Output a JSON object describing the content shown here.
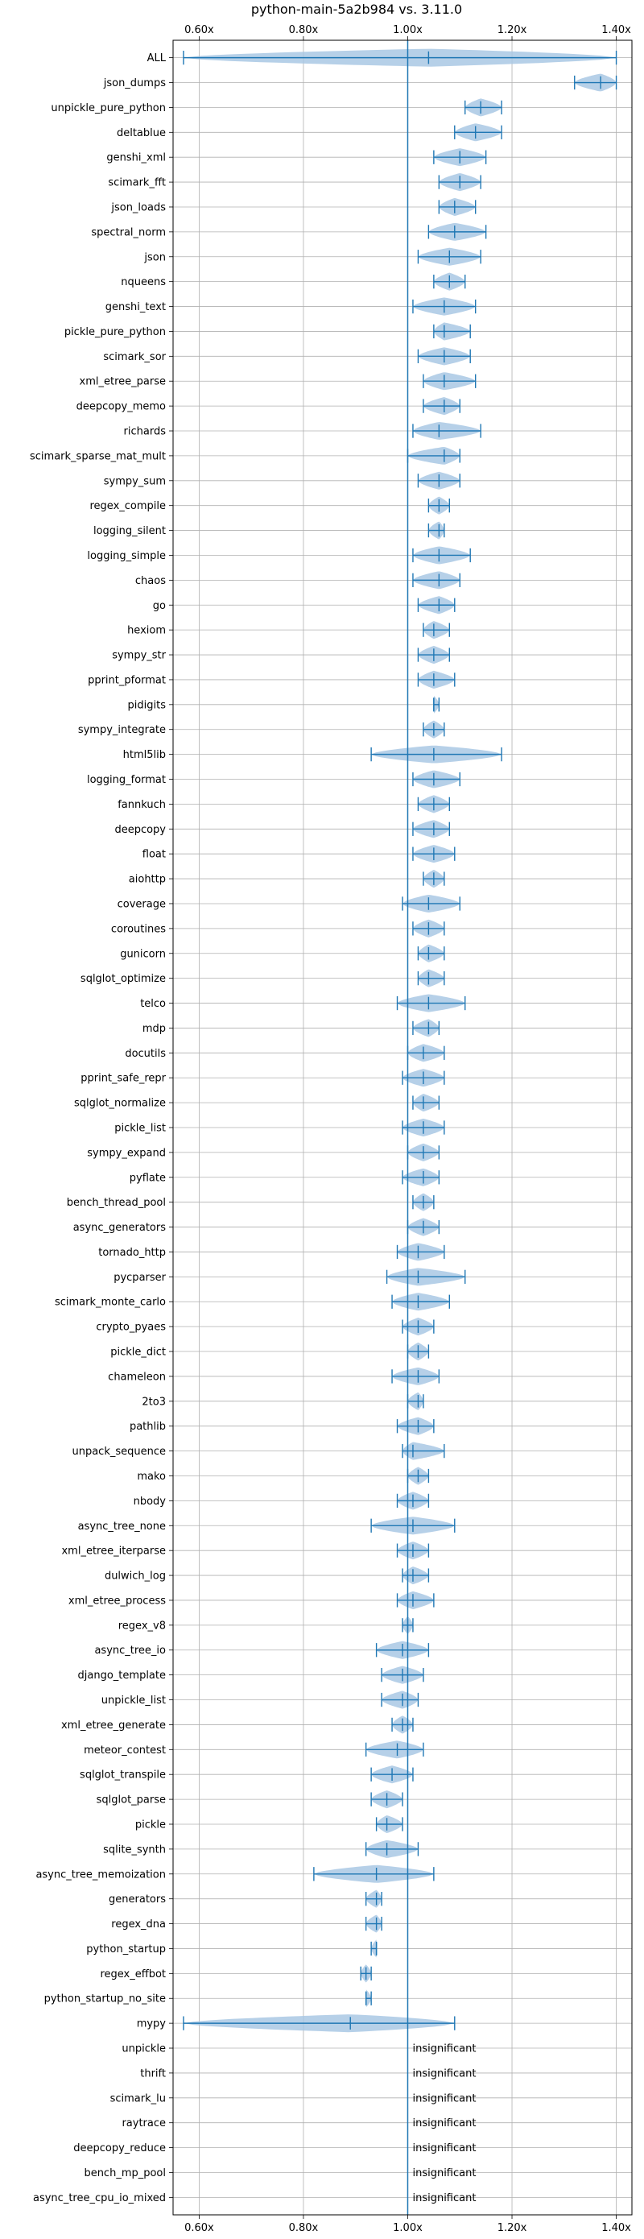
{
  "chart_data": {
    "type": "violin",
    "title": "python-main-5a2b984 vs. 3.11.0",
    "xlim": [
      0.55,
      1.43
    ],
    "xticks": [
      0.6,
      0.8,
      1.0,
      1.2,
      1.4
    ],
    "xtick_labels": [
      "0.60x",
      "0.80x",
      "1.00x",
      "1.20x",
      "1.40x"
    ],
    "reference_line": 1.0,
    "grid": true,
    "color": "#1f77b4",
    "fill_color": "#a9c8e4",
    "insignificant_label": "insignificant",
    "benchmarks": [
      {
        "name": "ALL",
        "min": 0.57,
        "max": 1.4,
        "median": 1.04
      },
      {
        "name": "json_dumps",
        "min": 1.32,
        "max": 1.4,
        "median": 1.37
      },
      {
        "name": "unpickle_pure_python",
        "min": 1.11,
        "max": 1.18,
        "median": 1.14
      },
      {
        "name": "deltablue",
        "min": 1.09,
        "max": 1.18,
        "median": 1.13
      },
      {
        "name": "genshi_xml",
        "min": 1.05,
        "max": 1.15,
        "median": 1.1
      },
      {
        "name": "scimark_fft",
        "min": 1.06,
        "max": 1.14,
        "median": 1.1
      },
      {
        "name": "json_loads",
        "min": 1.06,
        "max": 1.13,
        "median": 1.09
      },
      {
        "name": "spectral_norm",
        "min": 1.04,
        "max": 1.15,
        "median": 1.09
      },
      {
        "name": "json",
        "min": 1.02,
        "max": 1.14,
        "median": 1.08
      },
      {
        "name": "nqueens",
        "min": 1.05,
        "max": 1.11,
        "median": 1.08
      },
      {
        "name": "genshi_text",
        "min": 1.01,
        "max": 1.13,
        "median": 1.07
      },
      {
        "name": "pickle_pure_python",
        "min": 1.05,
        "max": 1.12,
        "median": 1.07
      },
      {
        "name": "scimark_sor",
        "min": 1.02,
        "max": 1.12,
        "median": 1.07
      },
      {
        "name": "xml_etree_parse",
        "min": 1.03,
        "max": 1.13,
        "median": 1.07
      },
      {
        "name": "deepcopy_memo",
        "min": 1.03,
        "max": 1.1,
        "median": 1.07
      },
      {
        "name": "richards",
        "min": 1.01,
        "max": 1.14,
        "median": 1.06
      },
      {
        "name": "scimark_sparse_mat_mult",
        "min": 1.0,
        "max": 1.1,
        "median": 1.07
      },
      {
        "name": "sympy_sum",
        "min": 1.02,
        "max": 1.1,
        "median": 1.06
      },
      {
        "name": "regex_compile",
        "min": 1.04,
        "max": 1.08,
        "median": 1.06
      },
      {
        "name": "logging_silent",
        "min": 1.04,
        "max": 1.07,
        "median": 1.06
      },
      {
        "name": "logging_simple",
        "min": 1.01,
        "max": 1.12,
        "median": 1.06
      },
      {
        "name": "chaos",
        "min": 1.01,
        "max": 1.1,
        "median": 1.06
      },
      {
        "name": "go",
        "min": 1.02,
        "max": 1.09,
        "median": 1.06
      },
      {
        "name": "hexiom",
        "min": 1.03,
        "max": 1.08,
        "median": 1.05
      },
      {
        "name": "sympy_str",
        "min": 1.02,
        "max": 1.08,
        "median": 1.05
      },
      {
        "name": "pprint_pformat",
        "min": 1.02,
        "max": 1.09,
        "median": 1.05
      },
      {
        "name": "pidigits",
        "min": 1.05,
        "max": 1.06,
        "median": 1.05
      },
      {
        "name": "sympy_integrate",
        "min": 1.03,
        "max": 1.07,
        "median": 1.05
      },
      {
        "name": "html5lib",
        "min": 0.93,
        "max": 1.18,
        "median": 1.05
      },
      {
        "name": "logging_format",
        "min": 1.01,
        "max": 1.1,
        "median": 1.05
      },
      {
        "name": "fannkuch",
        "min": 1.02,
        "max": 1.08,
        "median": 1.05
      },
      {
        "name": "deepcopy",
        "min": 1.01,
        "max": 1.08,
        "median": 1.05
      },
      {
        "name": "float",
        "min": 1.01,
        "max": 1.09,
        "median": 1.05
      },
      {
        "name": "aiohttp",
        "min": 1.03,
        "max": 1.07,
        "median": 1.05
      },
      {
        "name": "coverage",
        "min": 0.99,
        "max": 1.1,
        "median": 1.04
      },
      {
        "name": "coroutines",
        "min": 1.01,
        "max": 1.07,
        "median": 1.04
      },
      {
        "name": "gunicorn",
        "min": 1.02,
        "max": 1.07,
        "median": 1.04
      },
      {
        "name": "sqlglot_optimize",
        "min": 1.02,
        "max": 1.07,
        "median": 1.04
      },
      {
        "name": "telco",
        "min": 0.98,
        "max": 1.11,
        "median": 1.04
      },
      {
        "name": "mdp",
        "min": 1.01,
        "max": 1.06,
        "median": 1.04
      },
      {
        "name": "docutils",
        "min": 1.0,
        "max": 1.07,
        "median": 1.03
      },
      {
        "name": "pprint_safe_repr",
        "min": 0.99,
        "max": 1.07,
        "median": 1.03
      },
      {
        "name": "sqlglot_normalize",
        "min": 1.01,
        "max": 1.06,
        "median": 1.03
      },
      {
        "name": "pickle_list",
        "min": 0.99,
        "max": 1.07,
        "median": 1.03
      },
      {
        "name": "sympy_expand",
        "min": 1.0,
        "max": 1.06,
        "median": 1.03
      },
      {
        "name": "pyflate",
        "min": 0.99,
        "max": 1.06,
        "median": 1.03
      },
      {
        "name": "bench_thread_pool",
        "min": 1.01,
        "max": 1.05,
        "median": 1.03
      },
      {
        "name": "async_generators",
        "min": 1.0,
        "max": 1.06,
        "median": 1.03
      },
      {
        "name": "tornado_http",
        "min": 0.98,
        "max": 1.07,
        "median": 1.02
      },
      {
        "name": "pycparser",
        "min": 0.96,
        "max": 1.11,
        "median": 1.02
      },
      {
        "name": "scimark_monte_carlo",
        "min": 0.97,
        "max": 1.08,
        "median": 1.02
      },
      {
        "name": "crypto_pyaes",
        "min": 0.99,
        "max": 1.05,
        "median": 1.02
      },
      {
        "name": "pickle_dict",
        "min": 1.0,
        "max": 1.04,
        "median": 1.02
      },
      {
        "name": "chameleon",
        "min": 0.97,
        "max": 1.06,
        "median": 1.02
      },
      {
        "name": "2to3",
        "min": 1.0,
        "max": 1.03,
        "median": 1.02
      },
      {
        "name": "pathlib",
        "min": 0.98,
        "max": 1.05,
        "median": 1.02
      },
      {
        "name": "unpack_sequence",
        "min": 0.99,
        "max": 1.07,
        "median": 1.01
      },
      {
        "name": "mako",
        "min": 1.0,
        "max": 1.04,
        "median": 1.02
      },
      {
        "name": "nbody",
        "min": 0.98,
        "max": 1.04,
        "median": 1.01
      },
      {
        "name": "async_tree_none",
        "min": 0.93,
        "max": 1.09,
        "median": 1.01
      },
      {
        "name": "xml_etree_iterparse",
        "min": 0.98,
        "max": 1.04,
        "median": 1.01
      },
      {
        "name": "dulwich_log",
        "min": 0.99,
        "max": 1.04,
        "median": 1.01
      },
      {
        "name": "xml_etree_process",
        "min": 0.98,
        "max": 1.05,
        "median": 1.01
      },
      {
        "name": "regex_v8",
        "min": 0.99,
        "max": 1.01,
        "median": 1.0
      },
      {
        "name": "async_tree_io",
        "min": 0.94,
        "max": 1.04,
        "median": 0.99
      },
      {
        "name": "django_template",
        "min": 0.95,
        "max": 1.03,
        "median": 0.99
      },
      {
        "name": "unpickle_list",
        "min": 0.95,
        "max": 1.02,
        "median": 0.99
      },
      {
        "name": "xml_etree_generate",
        "min": 0.97,
        "max": 1.01,
        "median": 0.99
      },
      {
        "name": "meteor_contest",
        "min": 0.92,
        "max": 1.03,
        "median": 0.98
      },
      {
        "name": "sqlglot_transpile",
        "min": 0.93,
        "max": 1.01,
        "median": 0.97
      },
      {
        "name": "sqlglot_parse",
        "min": 0.93,
        "max": 0.99,
        "median": 0.96
      },
      {
        "name": "pickle",
        "min": 0.94,
        "max": 0.99,
        "median": 0.96
      },
      {
        "name": "sqlite_synth",
        "min": 0.92,
        "max": 1.02,
        "median": 0.96
      },
      {
        "name": "async_tree_memoization",
        "min": 0.82,
        "max": 1.05,
        "median": 0.94
      },
      {
        "name": "generators",
        "min": 0.92,
        "max": 0.95,
        "median": 0.94
      },
      {
        "name": "regex_dna",
        "min": 0.92,
        "max": 0.95,
        "median": 0.94
      },
      {
        "name": "python_startup",
        "min": 0.93,
        "max": 0.94,
        "median": 0.94
      },
      {
        "name": "regex_effbot",
        "min": 0.91,
        "max": 0.93,
        "median": 0.92
      },
      {
        "name": "python_startup_no_site",
        "min": 0.92,
        "max": 0.93,
        "median": 0.92
      },
      {
        "name": "mypy",
        "min": 0.57,
        "max": 1.09,
        "median": 0.89
      },
      {
        "name": "unpickle",
        "insignificant": true
      },
      {
        "name": "thrift",
        "insignificant": true
      },
      {
        "name": "scimark_lu",
        "insignificant": true
      },
      {
        "name": "raytrace",
        "insignificant": true
      },
      {
        "name": "deepcopy_reduce",
        "insignificant": true
      },
      {
        "name": "bench_mp_pool",
        "insignificant": true
      },
      {
        "name": "async_tree_cpu_io_mixed",
        "insignificant": true
      }
    ]
  }
}
